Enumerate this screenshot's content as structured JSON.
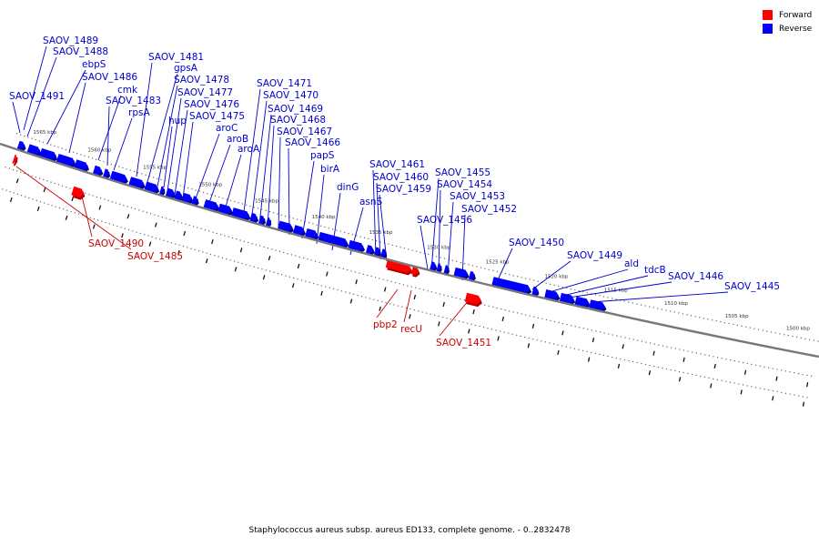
{
  "legend": [
    {
      "label": "Forward",
      "color": "#ff0000"
    },
    {
      "label": "Reverse",
      "color": "#0000ff"
    }
  ],
  "caption": "Staphylococcus aureus subsp. aureus ED133, complete genome. - 0..2832478",
  "colors": {
    "forward": "#ff0000",
    "forward_dark": "#b00000",
    "reverse": "#0000ff",
    "reverse_dark": "#000090",
    "backbone": "#777777"
  },
  "ticks": [
    "1565 kbp",
    "1560 kbp",
    "1555 kbp",
    "1550 kbp",
    "1545 kbp",
    "1540 kbp",
    "1535 kbp",
    "1530 kbp",
    "1525 kbp",
    "1520 kbp",
    "1515 kbp",
    "1510 kbp",
    "1505 kbp",
    "1500 kbp"
  ],
  "reverse_genes": [
    {
      "name": "SAOV_1491",
      "pos": 0.022,
      "len": 0.008
    },
    {
      "name": "SAOV_1489",
      "pos": 0.035,
      "len": 0.015
    },
    {
      "name": "SAOV_1488",
      "pos": 0.051,
      "len": 0.02
    },
    {
      "name": "ebpS",
      "pos": 0.073,
      "len": 0.022
    },
    {
      "name": "SAOV_1486",
      "pos": 0.096,
      "len": 0.016
    },
    {
      "name": "cmk",
      "pos": 0.12,
      "len": 0.01
    },
    {
      "name": "SAOV_1483",
      "pos": 0.133,
      "len": 0.006
    },
    {
      "name": "rpsA",
      "pos": 0.142,
      "len": 0.02
    },
    {
      "name": "SAOV_1481",
      "pos": 0.166,
      "len": 0.018
    },
    {
      "name": "gpsA",
      "pos": 0.186,
      "len": 0.016
    },
    {
      "name": "hup",
      "pos": 0.205,
      "len": 0.004
    },
    {
      "name": "SAOV_1478",
      "pos": 0.213,
      "len": 0.01
    },
    {
      "name": "SAOV_1477",
      "pos": 0.224,
      "len": 0.008
    },
    {
      "name": "SAOV_1476",
      "pos": 0.233,
      "len": 0.012
    },
    {
      "name": "SAOV_1475",
      "pos": 0.246,
      "len": 0.006
    },
    {
      "name": "aroC",
      "pos": 0.261,
      "len": 0.017
    },
    {
      "name": "aroB",
      "pos": 0.279,
      "len": 0.016
    },
    {
      "name": "aroA",
      "pos": 0.296,
      "len": 0.021
    },
    {
      "name": "SAOV_1471",
      "pos": 0.319,
      "len": 0.008
    },
    {
      "name": "SAOV_1470",
      "pos": 0.33,
      "len": 0.006
    },
    {
      "name": "SAOV_1469",
      "pos": 0.339,
      "len": 0.004
    },
    {
      "name": "SAOV_1468",
      "pos": 0.354,
      "len": 0.017
    },
    {
      "name": "SAOV_1467",
      "pos": 0.373,
      "len": 0.013
    },
    {
      "name": "SAOV_1466",
      "pos": 0.388,
      "len": 0.014
    },
    {
      "name": "papS",
      "pos": 0.404,
      "len": 0.035
    },
    {
      "name": "birA",
      "pos": 0.441,
      "len": 0.018
    },
    {
      "name": "dinG",
      "pos": 0.463,
      "len": 0.008
    },
    {
      "name": "asnS",
      "pos": 0.473,
      "len": 0.006
    },
    {
      "name": "SAOV_1461",
      "pos": 0.481,
      "len": 0.005
    },
    {
      "name": "SAOV_1460",
      "pos": 0.541,
      "len": 0.006
    },
    {
      "name": "SAOV_1459",
      "pos": 0.549,
      "len": 0.004
    },
    {
      "name": "SAOV_1456",
      "pos": 0.558,
      "len": 0.004
    },
    {
      "name": "SAOV_1455",
      "pos": 0.57,
      "len": 0.016
    },
    {
      "name": "SAOV_1454",
      "pos": 0.588,
      "len": 0.006
    },
    {
      "name": "SAOV_1453",
      "pos": 0.616,
      "len": 0.045
    },
    {
      "name": "SAOV_1452",
      "pos": 0.664,
      "len": 0.006
    },
    {
      "name": "SAOV_1450",
      "pos": 0.679,
      "len": 0.016
    },
    {
      "name": "SAOV_1449",
      "pos": 0.697,
      "len": 0.016
    },
    {
      "name": "ald",
      "pos": 0.715,
      "len": 0.016
    },
    {
      "name": "tdcB",
      "pos": 0.732,
      "len": 0.018
    }
  ],
  "forward_genes": [
    {
      "name": "SAOV_1490",
      "pos": 0.103,
      "len": 0.014
    },
    {
      "name": "SAOV_1485",
      "pos": 0.022,
      "len": 0.003
    },
    {
      "name": "pbp2",
      "pos": 0.49,
      "len": 0.03
    },
    {
      "name": "recU",
      "pos": 0.521,
      "len": 0.008
    },
    {
      "name": "SAOV_1451",
      "pos": 0.59,
      "len": 0.018
    }
  ],
  "labels": [
    {
      "text": "SAOV_1489",
      "color": "#0000cc"
    },
    {
      "text": "SAOV_1488",
      "color": "#0000cc"
    },
    {
      "text": "ebpS",
      "color": "#0000cc"
    },
    {
      "text": "SAOV_1491",
      "color": "#0000cc"
    },
    {
      "text": "SAOV_1486",
      "color": "#0000cc"
    },
    {
      "text": "cmk",
      "color": "#0000cc"
    },
    {
      "text": "SAOV_1483",
      "color": "#0000cc"
    },
    {
      "text": "rpsA",
      "color": "#0000cc"
    },
    {
      "text": "SAOV_1481",
      "color": "#0000cc"
    },
    {
      "text": "gpsA",
      "color": "#0000cc"
    },
    {
      "text": "SAOV_1478",
      "color": "#0000cc"
    },
    {
      "text": "SAOV_1477",
      "color": "#0000cc"
    },
    {
      "text": "SAOV_1476",
      "color": "#0000cc"
    },
    {
      "text": "hup",
      "color": "#0000cc"
    },
    {
      "text": "SAOV_1475",
      "color": "#0000cc"
    },
    {
      "text": "aroC",
      "color": "#0000cc"
    },
    {
      "text": "aroB",
      "color": "#0000cc"
    },
    {
      "text": "aroA",
      "color": "#0000cc"
    },
    {
      "text": "SAOV_1471",
      "color": "#0000cc"
    },
    {
      "text": "SAOV_1470",
      "color": "#0000cc"
    },
    {
      "text": "SAOV_1469",
      "color": "#0000cc"
    },
    {
      "text": "SAOV_1468",
      "color": "#0000cc"
    },
    {
      "text": "SAOV_1467",
      "color": "#0000cc"
    },
    {
      "text": "SAOV_1466",
      "color": "#0000cc"
    },
    {
      "text": "papS",
      "color": "#0000cc"
    },
    {
      "text": "birA",
      "color": "#0000cc"
    },
    {
      "text": "dinG",
      "color": "#0000cc"
    },
    {
      "text": "asnS",
      "color": "#0000cc"
    },
    {
      "text": "SAOV_1461",
      "color": "#0000cc"
    },
    {
      "text": "SAOV_1460",
      "color": "#0000cc"
    },
    {
      "text": "SAOV_1459",
      "color": "#0000cc"
    },
    {
      "text": "SAOV_1455",
      "color": "#0000cc"
    },
    {
      "text": "SAOV_1454",
      "color": "#0000cc"
    },
    {
      "text": "SAOV_1453",
      "color": "#0000cc"
    },
    {
      "text": "SAOV_1456",
      "color": "#0000cc"
    },
    {
      "text": "SAOV_1452",
      "color": "#0000cc"
    },
    {
      "text": "SAOV_1450",
      "color": "#0000cc"
    },
    {
      "text": "SAOV_1449",
      "color": "#0000cc"
    },
    {
      "text": "ald",
      "color": "#0000cc"
    },
    {
      "text": "tdcB",
      "color": "#0000cc"
    },
    {
      "text": "SAOV_1446",
      "color": "#0000cc"
    },
    {
      "text": "SAOV_1445",
      "color": "#0000cc"
    },
    {
      "text": "SAOV_1490",
      "color": "#cc0000"
    },
    {
      "text": "SAOV_1485",
      "color": "#cc0000"
    },
    {
      "text": "pbp2",
      "color": "#cc0000"
    },
    {
      "text": "recU",
      "color": "#cc0000"
    },
    {
      "text": "SAOV_1451",
      "color": "#cc0000"
    }
  ]
}
